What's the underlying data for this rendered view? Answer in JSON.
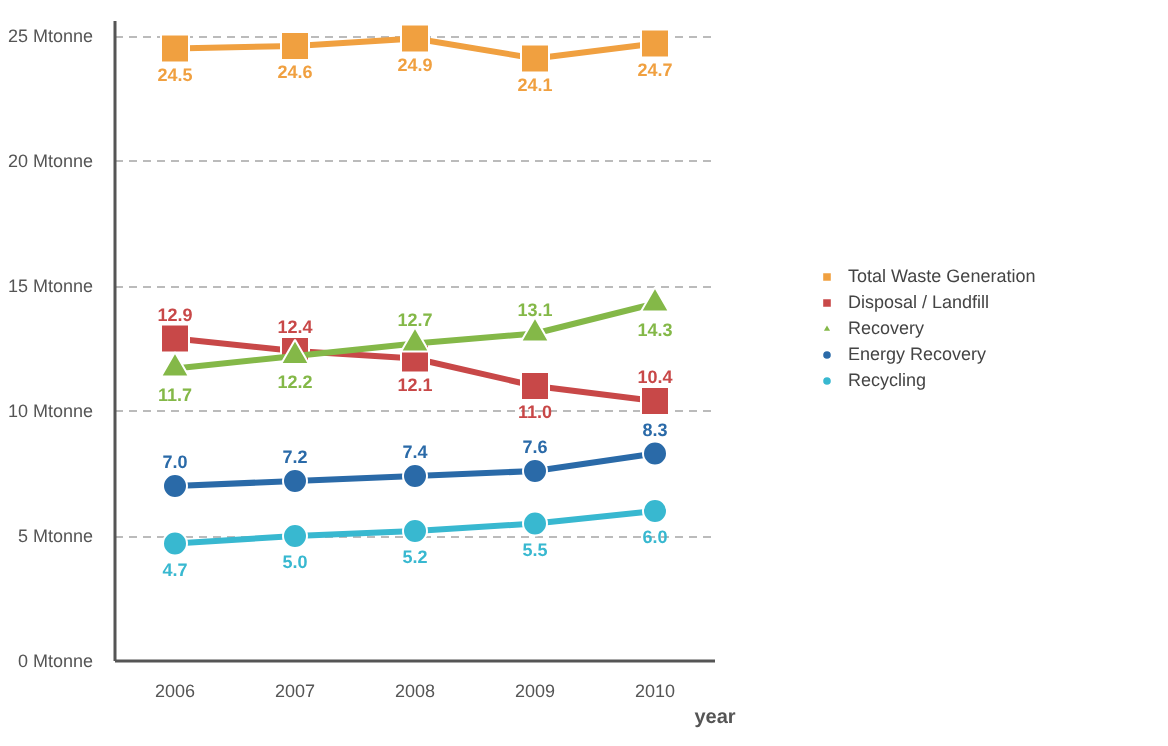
{
  "chart_data": {
    "type": "line",
    "xlabel": "year",
    "categories": [
      "2006",
      "2007",
      "2008",
      "2009",
      "2010"
    ],
    "series": [
      {
        "name": "Total Waste Generation",
        "color": "#f0a040",
        "marker": "square",
        "values": [
          24.5,
          24.6,
          24.9,
          24.1,
          24.7
        ],
        "value_labels": [
          "24.5",
          "24.6",
          "24.9",
          "24.1",
          "24.7"
        ]
      },
      {
        "name": "Disposal / Landfill",
        "color": "#c84848",
        "marker": "square",
        "values": [
          12.9,
          12.4,
          12.1,
          11.0,
          10.4
        ],
        "value_labels": [
          "12.9",
          "12.4",
          "12.1",
          "11.0",
          "10.4"
        ]
      },
      {
        "name": "Recovery",
        "color": "#84b848",
        "marker": "triangle",
        "values": [
          11.7,
          12.2,
          12.7,
          13.1,
          14.3
        ],
        "value_labels": [
          "11.7",
          "12.2",
          "12.7",
          "13.1",
          "14.3"
        ]
      },
      {
        "name": "Energy Recovery",
        "color": "#2a6aa8",
        "marker": "circle",
        "values": [
          7.0,
          7.2,
          7.4,
          7.6,
          8.3
        ],
        "value_labels": [
          "7.0",
          "7.2",
          "7.4",
          "7.6",
          "8.3"
        ]
      },
      {
        "name": "Recycling",
        "color": "#38b8d0",
        "marker": "circle",
        "values": [
          4.7,
          5.0,
          5.2,
          5.5,
          6.0
        ],
        "value_labels": [
          "4.7",
          "5.0",
          "5.2",
          "5.5",
          "6.0"
        ]
      }
    ],
    "ylim": [
      0,
      25.6
    ],
    "yticks": [
      {
        "value": 0,
        "label": "0 Mtonne"
      },
      {
        "value": 5,
        "label": "5 Mtonne"
      },
      {
        "value": 10,
        "label": "10 Mtonne"
      },
      {
        "value": 15,
        "label": "15 Mtonne"
      },
      {
        "value": 20,
        "label": "20 Mtonne"
      },
      {
        "value": 25,
        "label": "25 Mtonne"
      }
    ],
    "grid": "y",
    "legend": "right",
    "line_style": "solid"
  }
}
